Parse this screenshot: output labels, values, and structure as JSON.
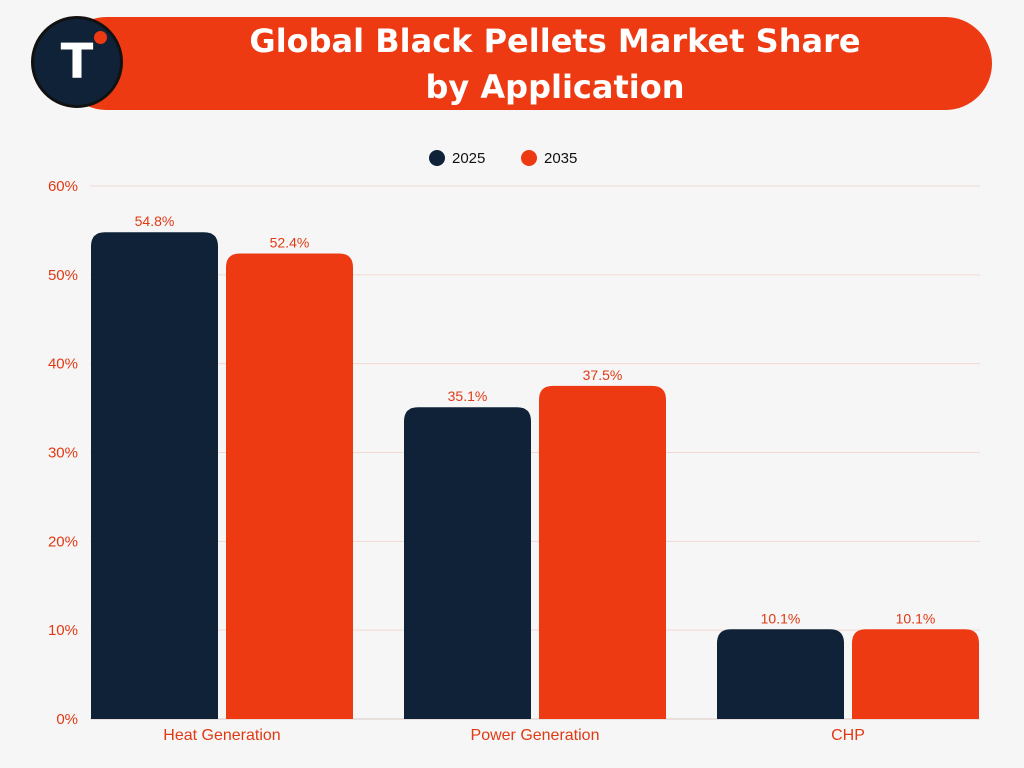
{
  "header": {
    "title_line1": "Global Black Pellets Market Share",
    "title_line2": "by Application",
    "logo_letter": "T"
  },
  "colors": {
    "series_2025": "#0f2237",
    "series_2035": "#ee3a12",
    "accent": "#ee3a12",
    "label_text": "#e03a14"
  },
  "chart_data": {
    "type": "bar",
    "title": "Global Black Pellets Market Share by Application",
    "categories": [
      "Heat Generation",
      "Power Generation",
      "CHP"
    ],
    "series": [
      {
        "name": "2025",
        "values": [
          54.8,
          35.1,
          10.1
        ]
      },
      {
        "name": "2035",
        "values": [
          52.4,
          37.5,
          10.1
        ]
      }
    ],
    "data_labels": [
      [
        "54.8%",
        "35.1%",
        "10.1%"
      ],
      [
        "52.4%",
        "37.5%",
        "10.1%"
      ]
    ],
    "y_ticks": [
      "0%",
      "10%",
      "20%",
      "30%",
      "40%",
      "50%",
      "60%"
    ],
    "y_tick_values": [
      0,
      10,
      20,
      30,
      40,
      50,
      60
    ],
    "ylim": [
      0,
      60
    ],
    "xlabel": "",
    "ylabel": "",
    "grid": true,
    "legend_position": "top-center"
  }
}
